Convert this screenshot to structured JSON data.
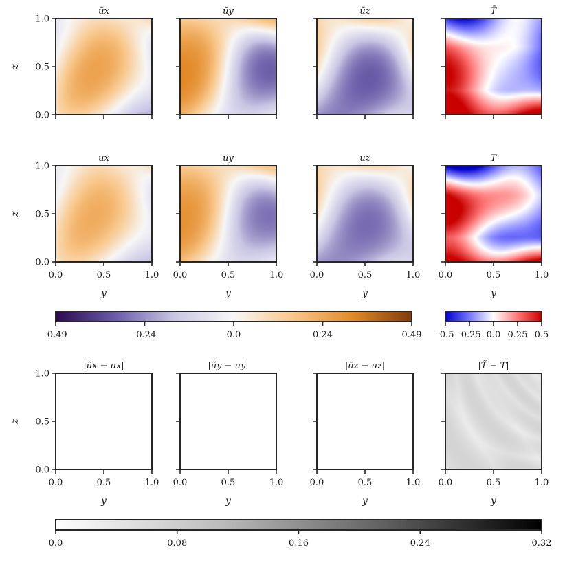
{
  "figure": {
    "rows": [
      {
        "titles": [
          "ũx",
          "ũy",
          "ũz",
          "T̃"
        ],
        "fields": [
          "diverging",
          "diverging",
          "diverging",
          "temperature"
        ],
        "show_x_ticks": false,
        "show_xlabel": false
      },
      {
        "titles": [
          "ux",
          "uy",
          "uz",
          "T"
        ],
        "fields": [
          "diverging",
          "diverging",
          "diverging",
          "temperature"
        ],
        "show_x_ticks": true,
        "show_xlabel": true
      },
      {
        "titles": [
          "|ũx − ux|",
          "|ũy − uy|",
          "|ũz − uz|",
          "|T̃ − T|"
        ],
        "fields": [
          "zero",
          "zero",
          "zero",
          "error"
        ],
        "show_x_ticks": true,
        "show_xlabel": true
      }
    ],
    "xlabel": "y",
    "ylabel": "z"
  },
  "chart_data": {
    "type": "heatmap",
    "x_range": [
      0.0,
      1.0
    ],
    "y_range": [
      0.0,
      1.0
    ],
    "x_ticks": [
      "0.0",
      "0.5",
      "1.0"
    ],
    "y_ticks": [
      "0.0",
      "0.5",
      "1.0"
    ],
    "colorbars": [
      {
        "name": "velocity",
        "range": [
          -0.49,
          0.49
        ],
        "tick_labels": [
          "-0.49",
          "-0.24",
          "0.0",
          "0.24",
          "0.49"
        ],
        "stops": [
          "#2d0a4e",
          "#6a5ba8",
          "#c9c6e4",
          "#f7f7f7",
          "#f9c78b",
          "#e38a28",
          "#7f3b08"
        ]
      },
      {
        "name": "temperature",
        "range": [
          -0.5,
          0.5
        ],
        "tick_labels": [
          "-0.5",
          "-0.25",
          "0.0",
          "0.25",
          "0.5"
        ],
        "stops": [
          "#0000c8",
          "#7777ff",
          "#ffffff",
          "#ff7777",
          "#c80000"
        ]
      },
      {
        "name": "error",
        "range": [
          0.0,
          0.32
        ],
        "tick_labels": [
          "0.0",
          "0.08",
          "0.16",
          "0.24",
          "0.32"
        ],
        "stops": [
          "#ffffff",
          "#bdbdbd",
          "#636363",
          "#000000"
        ]
      }
    ]
  }
}
